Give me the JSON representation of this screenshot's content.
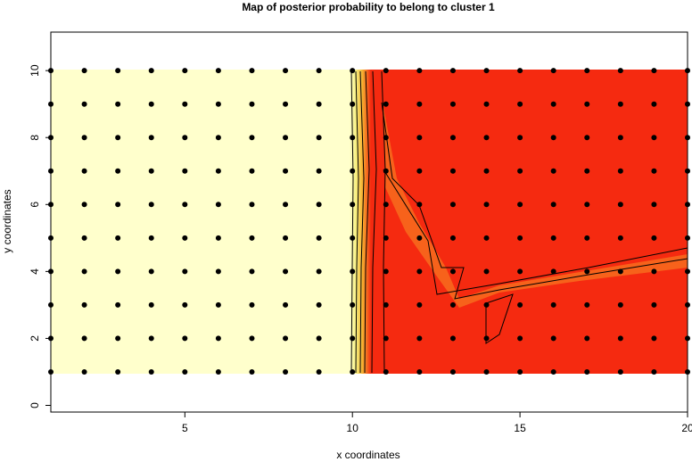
{
  "chart_data": {
    "type": "scatter",
    "title": "Map of posterior probability to belong to cluster  1",
    "x_label": "x coordinates",
    "y_label": "y coordinates",
    "grid_x": [
      1,
      2,
      3,
      4,
      5,
      6,
      7,
      8,
      9,
      10,
      11,
      12,
      13,
      14,
      15,
      16,
      17,
      18,
      19,
      20
    ],
    "grid_y": [
      1,
      2,
      3,
      4,
      5,
      6,
      7,
      8,
      9,
      10
    ],
    "point_color": "#000000",
    "xlim": [
      1,
      20
    ],
    "xticks": [
      5,
      10,
      15,
      20
    ],
    "ylim": [
      -0.2,
      11.15
    ],
    "yticks": [
      0,
      2,
      4,
      6,
      8,
      10
    ]
  }
}
